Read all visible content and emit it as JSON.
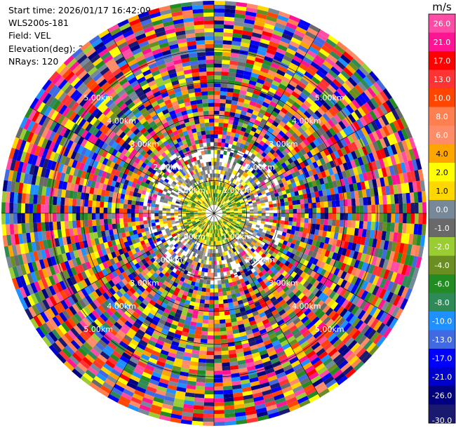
{
  "info": {
    "start_time": "Start time: 2026/01/17 16:42:09",
    "station": "WLS200s-181",
    "field": "Field: VEL",
    "elevation": "Elevation(deg): 35.00",
    "nrays": "NRays: 120"
  },
  "chart_data": {
    "type": "heatmap",
    "projection": "polar (PPI scan)",
    "field": "VEL",
    "elevation_deg": 35.0,
    "n_rays": 120,
    "range_rings_km": [
      1,
      2,
      3,
      4,
      5
    ],
    "range_labels": [
      "1.00km",
      "2.00km",
      "3.00km",
      "4.00km",
      "5.00km"
    ],
    "max_range_km": 6.5,
    "colorbar": {
      "unit": "m/s",
      "ticks": [
        "26.0",
        "21.0",
        "17.0",
        "13.0",
        "10.0",
        "8.0",
        "6.0",
        "4.0",
        "2.0",
        "1.0",
        "0.0",
        "-1.0",
        "-2.0",
        "-4.0",
        "-6.0",
        "-8.0",
        "-10.0",
        "-13.0",
        "-17.0",
        "-21.0",
        "-26.0",
        "-30.0"
      ],
      "colors": [
        "#ff4da6",
        "#ff1493",
        "#ff0000",
        "#ff3333",
        "#ff4500",
        "#ff7f50",
        "#ff8c69",
        "#ffa500",
        "#ffff00",
        "#ffd700",
        "#778899",
        "#696969",
        "#9acd32",
        "#6b8e23",
        "#228b22",
        "#2e8b57",
        "#1e90ff",
        "#4169e1",
        "#0000ff",
        "#0000cd",
        "#000080",
        "#191970"
      ]
    }
  }
}
